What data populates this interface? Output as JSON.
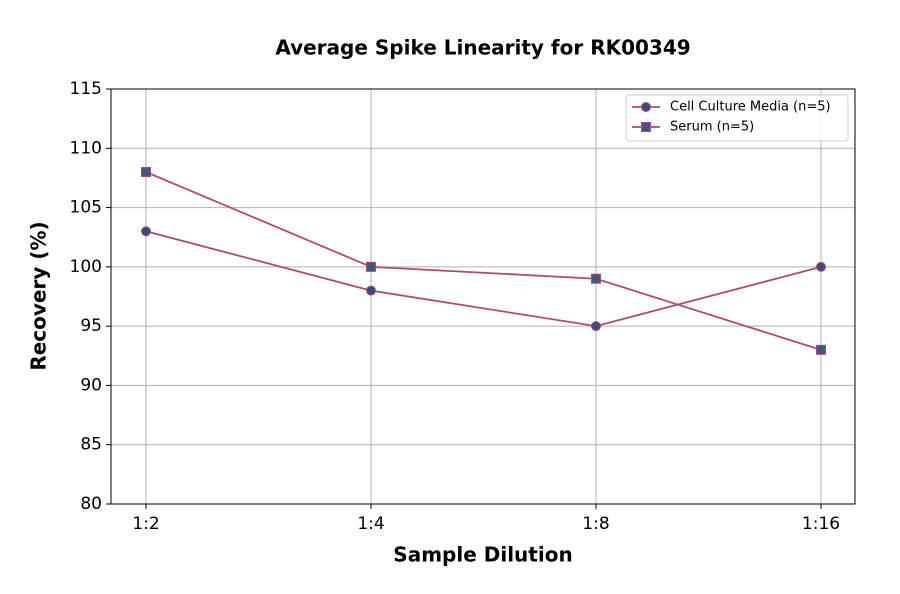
{
  "chart_data": {
    "type": "line",
    "title": "Average Spike Linearity for RK00349",
    "xlabel": "Sample Dilution",
    "ylabel": "Recovery (%)",
    "categories": [
      "1:2",
      "1:4",
      "1:8",
      "1:16"
    ],
    "series": [
      {
        "name": "Cell Culture Media (n=5)",
        "color": "#b04a6e",
        "marker": "circle",
        "marker_color": "#3d4a7c",
        "values": [
          103,
          98,
          95,
          100
        ]
      },
      {
        "name": "Serum (n=5)",
        "color": "#b04a6e",
        "marker": "square",
        "marker_color": "#3d5a7c",
        "values": [
          108,
          100,
          99,
          93
        ]
      }
    ],
    "ylim": [
      80,
      115
    ],
    "yticks": [
      80,
      85,
      90,
      95,
      100,
      105,
      110,
      115
    ],
    "grid": true,
    "legend": "upper right"
  }
}
